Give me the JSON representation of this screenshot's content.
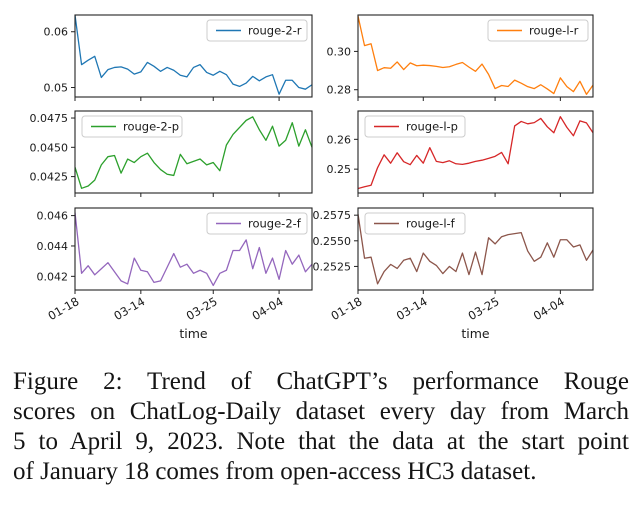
{
  "figure": {
    "xlabel": "time",
    "x_tick_labels": [
      "01-18",
      "03-14",
      "03-25",
      "04-04"
    ],
    "x_tick_indices": [
      0,
      10,
      21,
      31
    ],
    "points_per_series": 37
  },
  "chart_data": [
    {
      "name": "rouge-2-r",
      "type": "line",
      "color": "#1f77b4",
      "legend_loc": "upper right",
      "ylim": [
        0.0483,
        0.063
      ],
      "yticks": [
        {
          "v": 0.06,
          "label": "0.06"
        },
        {
          "v": 0.05,
          "label": "0.05"
        }
      ],
      "values": [
        0.063,
        0.0541,
        0.0549,
        0.0556,
        0.0518,
        0.0532,
        0.0536,
        0.0537,
        0.0533,
        0.0524,
        0.0528,
        0.0545,
        0.0538,
        0.0529,
        0.0536,
        0.0531,
        0.0522,
        0.0519,
        0.0536,
        0.0541,
        0.0527,
        0.0522,
        0.0529,
        0.0523,
        0.0506,
        0.0502,
        0.0508,
        0.052,
        0.0512,
        0.0519,
        0.0523,
        0.0488,
        0.0513,
        0.0513,
        0.05,
        0.0497,
        0.0505
      ]
    },
    {
      "name": "rouge-l-r",
      "type": "line",
      "color": "#ff7f0e",
      "legend_loc": "upper right",
      "ylim": [
        0.2762,
        0.319
      ],
      "yticks": [
        {
          "v": 0.3,
          "label": "0.30"
        },
        {
          "v": 0.28,
          "label": "0.28"
        }
      ],
      "values": [
        0.3185,
        0.303,
        0.304,
        0.29,
        0.2915,
        0.2912,
        0.2945,
        0.2905,
        0.294,
        0.2925,
        0.2928,
        0.2926,
        0.2922,
        0.2916,
        0.292,
        0.2932,
        0.2942,
        0.2918,
        0.2896,
        0.2934,
        0.288,
        0.2806,
        0.2822,
        0.2817,
        0.285,
        0.2834,
        0.2816,
        0.2806,
        0.2826,
        0.2804,
        0.278,
        0.2862,
        0.2816,
        0.279,
        0.2844,
        0.2776,
        0.2824
      ]
    },
    {
      "name": "rouge-2-p",
      "type": "line",
      "color": "#2ca02c",
      "legend_loc": "upper left",
      "ylim": [
        0.0411,
        0.0481
      ],
      "yticks": [
        {
          "v": 0.0475,
          "label": "0.0475"
        },
        {
          "v": 0.045,
          "label": "0.0450"
        },
        {
          "v": 0.0425,
          "label": "0.0425"
        }
      ],
      "values": [
        0.0433,
        0.0415,
        0.0417,
        0.0422,
        0.0435,
        0.0442,
        0.0443,
        0.0428,
        0.044,
        0.0437,
        0.0442,
        0.0445,
        0.0437,
        0.0431,
        0.0427,
        0.0426,
        0.0444,
        0.0436,
        0.0438,
        0.044,
        0.0435,
        0.0437,
        0.043,
        0.0452,
        0.0461,
        0.0467,
        0.0473,
        0.0476,
        0.0465,
        0.0456,
        0.0468,
        0.0451,
        0.0456,
        0.0471,
        0.0451,
        0.0465,
        0.045
      ]
    },
    {
      "name": "rouge-l-p",
      "type": "line",
      "color": "#d62728",
      "legend_loc": "upper left",
      "ylim": [
        0.242,
        0.2695
      ],
      "yticks": [
        {
          "v": 0.26,
          "label": "0.26"
        },
        {
          "v": 0.25,
          "label": "0.25"
        }
      ],
      "values": [
        0.2435,
        0.2441,
        0.2446,
        0.2505,
        0.2548,
        0.252,
        0.2555,
        0.2525,
        0.2515,
        0.2546,
        0.252,
        0.2572,
        0.2526,
        0.2522,
        0.2528,
        0.2518,
        0.2516,
        0.252,
        0.2526,
        0.253,
        0.2536,
        0.2543,
        0.2556,
        0.2518,
        0.2645,
        0.266,
        0.2652,
        0.2656,
        0.267,
        0.2642,
        0.2622,
        0.2676,
        0.264,
        0.2612,
        0.2662,
        0.2655,
        0.2622
      ]
    },
    {
      "name": "rouge-2-f",
      "type": "line",
      "color": "#9467bd",
      "legend_loc": "upper right",
      "ylim": [
        0.0411,
        0.0465
      ],
      "yticks": [
        {
          "v": 0.046,
          "label": "0.046"
        },
        {
          "v": 0.044,
          "label": "0.044"
        },
        {
          "v": 0.042,
          "label": "0.042"
        }
      ],
      "values": [
        0.0462,
        0.0422,
        0.0427,
        0.0421,
        0.0425,
        0.0429,
        0.0423,
        0.0417,
        0.0415,
        0.0432,
        0.0424,
        0.0423,
        0.0416,
        0.0417,
        0.0426,
        0.0435,
        0.0426,
        0.0428,
        0.0422,
        0.0424,
        0.0422,
        0.0414,
        0.0422,
        0.0424,
        0.0437,
        0.0437,
        0.0444,
        0.0425,
        0.0439,
        0.0422,
        0.0432,
        0.0418,
        0.0437,
        0.0428,
        0.0434,
        0.0423,
        0.0428
      ]
    },
    {
      "name": "rouge-l-f",
      "type": "line",
      "color": "#8c564b",
      "legend_loc": "upper left",
      "ylim": [
        0.2502,
        0.2582
      ],
      "yticks": [
        {
          "v": 0.2575,
          "label": "0.2575"
        },
        {
          "v": 0.255,
          "label": "0.2550"
        },
        {
          "v": 0.2525,
          "label": "0.2525"
        }
      ],
      "values": [
        0.2576,
        0.2533,
        0.2534,
        0.2508,
        0.252,
        0.2527,
        0.2523,
        0.2531,
        0.2533,
        0.252,
        0.2538,
        0.253,
        0.2526,
        0.2518,
        0.2525,
        0.252,
        0.2538,
        0.2517,
        0.2539,
        0.2517,
        0.2553,
        0.2547,
        0.2554,
        0.2556,
        0.2557,
        0.2558,
        0.254,
        0.253,
        0.2534,
        0.2548,
        0.2534,
        0.2551,
        0.2551,
        0.2544,
        0.2546,
        0.2531,
        0.2541
      ]
    }
  ],
  "caption": {
    "label": "Figure 2:",
    "lines": [
      "Figure 2: Trend of ChatGPT’s performance Rouge",
      "scores on ChatLog-Daily dataset every day from March",
      "5 to April 9, 2023. Note that the data at the start point",
      "of January 18 comes from open-access HC3 dataset."
    ]
  }
}
